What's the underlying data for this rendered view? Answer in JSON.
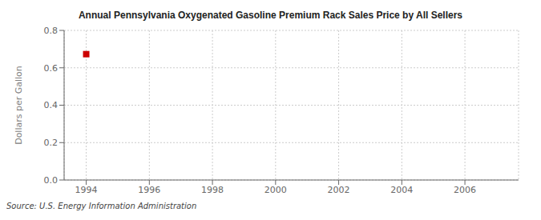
{
  "chart_data": {
    "type": "scatter",
    "title": "Annual Pennsylvania Oxygenated Gasoline Premium Rack Sales Price by All Sellers",
    "ylabel": "Dollars per Gallon",
    "annotations": [
      "Source: U.S. Energy Information Administration"
    ],
    "x": [
      1994
    ],
    "values": [
      0.673
    ],
    "color": "#cc0000",
    "marker": "square",
    "xlim": [
      1993.3,
      2007.7
    ],
    "ylim": [
      0.0,
      0.8
    ],
    "xticks": [
      1994,
      1996,
      1998,
      2000,
      2002,
      2004,
      2006
    ],
    "yticks": [
      {
        "value": 0.0,
        "label": "0.0"
      },
      0.2,
      0.4,
      0.6,
      0.8
    ],
    "grid": true
  }
}
